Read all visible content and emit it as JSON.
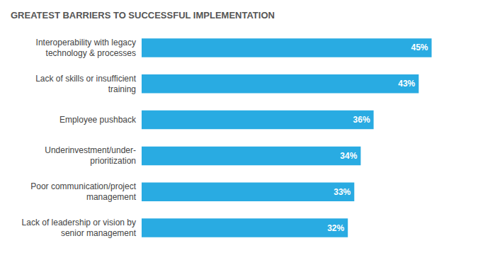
{
  "chart_data": {
    "type": "bar",
    "orientation": "horizontal",
    "title": "GREATEST BARRIERS TO SUCCESSFUL IMPLEMENTATION",
    "categories": [
      "Lack of leadership or vision by\nsenior management",
      "Poor communication/project\nmanagement",
      "Underinvestment/under-\nprioritization",
      "Employee pushback",
      "Lack of skills or insufficient\ntraining",
      "Interoperability with legacy\ntechnology & processes"
    ],
    "values": [
      32,
      33,
      34,
      36,
      43,
      45
    ],
    "value_labels": [
      "32%",
      "33%",
      "34%",
      "36%",
      "43%",
      "45%"
    ],
    "data_labels": true,
    "color": "#29ABE2",
    "xlim": [
      0,
      50
    ],
    "tick_labels": "y",
    "grid": false
  }
}
